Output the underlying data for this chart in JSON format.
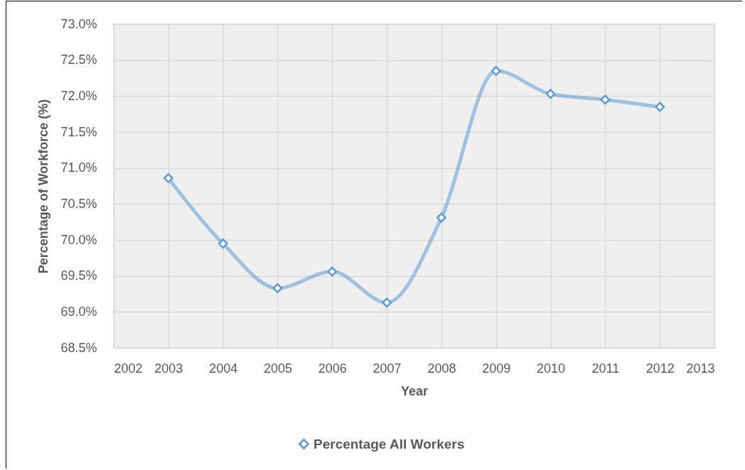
{
  "chart_data": {
    "type": "line",
    "xlabel": "Year",
    "ylabel": "Percentage of Workforce (%)",
    "x": [
      2003,
      2004,
      2005,
      2006,
      2007,
      2008,
      2009,
      2010,
      2011,
      2012
    ],
    "series": [
      {
        "name": "Percentage All Workers",
        "color": "#5b9bd5",
        "values": [
          70.86,
          69.95,
          69.33,
          69.56,
          69.13,
          70.31,
          72.35,
          72.03,
          71.95,
          71.85
        ]
      }
    ],
    "xlim": [
      2002,
      2013
    ],
    "xticks": [
      2002,
      2003,
      2004,
      2005,
      2006,
      2007,
      2008,
      2009,
      2010,
      2011,
      2012,
      2013
    ],
    "ylim": [
      68.5,
      73
    ],
    "yticks": [
      {
        "value": 68.5,
        "label": "68.5%"
      },
      {
        "value": 69,
        "label": "69.0%"
      },
      {
        "value": 69.5,
        "label": "69.5%"
      },
      {
        "value": 70,
        "label": "70.0%"
      },
      {
        "value": 70.5,
        "label": "70.5%"
      },
      {
        "value": 71,
        "label": "71.0%"
      },
      {
        "value": 71.5,
        "label": "71.5%"
      },
      {
        "value": 72,
        "label": "72.0%"
      },
      {
        "value": 72.5,
        "label": "72.5%"
      },
      {
        "value": 73,
        "label": "73.0%"
      }
    ],
    "grid": true,
    "legend": "bottom",
    "marker": "diamond"
  }
}
